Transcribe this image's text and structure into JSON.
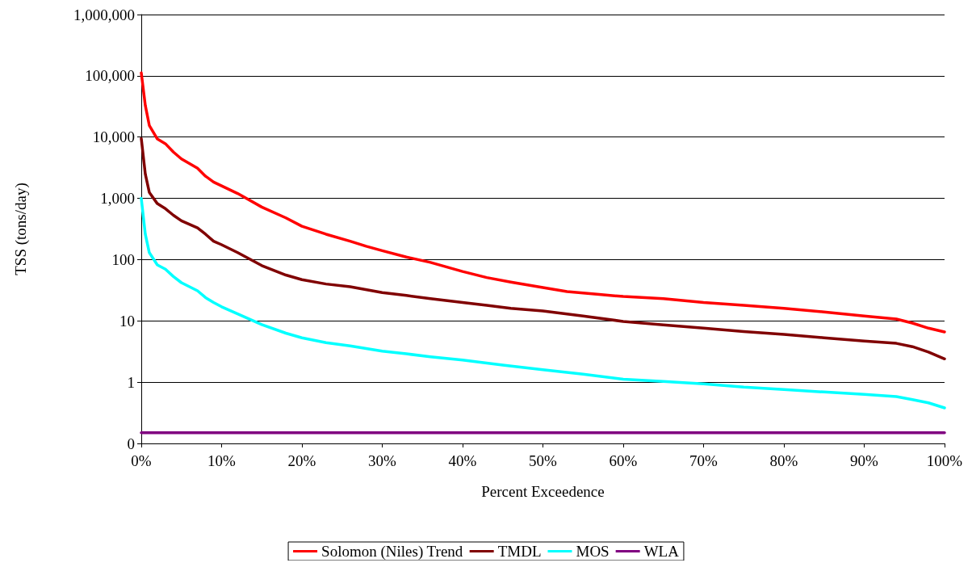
{
  "chart_data": {
    "type": "line",
    "xlabel": "Percent Exceedence",
    "ylabel": "TSS (tons/day)",
    "log": "y",
    "grid": "y",
    "legend": "bottom",
    "marker": "none",
    "line_style": "solid",
    "xlim": [
      0,
      100
    ],
    "xticks": [
      {
        "value": 0,
        "label": "0%"
      },
      {
        "value": 10,
        "label": "10%"
      },
      {
        "value": 20,
        "label": "20%"
      },
      {
        "value": 30,
        "label": "30%"
      },
      {
        "value": 40,
        "label": "40%"
      },
      {
        "value": 50,
        "label": "50%"
      },
      {
        "value": 60,
        "label": "60%"
      },
      {
        "value": 70,
        "label": "70%"
      },
      {
        "value": 80,
        "label": "80%"
      },
      {
        "value": 90,
        "label": "90%"
      },
      {
        "value": 100,
        "label": "100%"
      }
    ],
    "ylim": [
      0.1,
      1000000
    ],
    "yticks": [
      {
        "value": 0.1,
        "label": "0"
      },
      1,
      10,
      100,
      {
        "value": 1000,
        "label": "1,000"
      },
      {
        "value": 10000,
        "label": "10,000"
      },
      {
        "value": 100000,
        "label": "100,000"
      },
      {
        "value": 1000000,
        "label": "1,000,000"
      }
    ],
    "series": [
      {
        "name": "Solomon (Niles) Trend",
        "color": "#ff0000",
        "x": [
          0,
          0.5,
          1,
          2,
          3,
          4,
          5,
          7,
          8,
          9,
          10,
          12,
          15,
          18,
          20,
          23,
          26,
          28,
          30,
          33,
          36,
          40,
          43,
          46,
          50,
          53,
          57,
          60,
          65,
          70,
          75,
          80,
          85,
          90,
          94,
          96,
          98,
          100
        ],
        "values": [
          112000,
          33000,
          15500,
          9300,
          7800,
          5700,
          4400,
          3100,
          2300,
          1850,
          1600,
          1200,
          720,
          480,
          350,
          260,
          200,
          165,
          140,
          110,
          90,
          64,
          51,
          43,
          35,
          30,
          27,
          25,
          23,
          20,
          18,
          16,
          14,
          12,
          10.7,
          9.2,
          7.6,
          6.6
        ]
      },
      {
        "name": "TMDL",
        "color": "#800000",
        "x": [
          0,
          0.5,
          1,
          2,
          3,
          4,
          5,
          7,
          8,
          9,
          10,
          12,
          15,
          18,
          20,
          23,
          26,
          30,
          33,
          36,
          40,
          43,
          46,
          50,
          55,
          60,
          65,
          70,
          75,
          80,
          85,
          90,
          94,
          96,
          98,
          100
        ],
        "values": [
          9500,
          2500,
          1250,
          820,
          680,
          530,
          430,
          330,
          260,
          200,
          175,
          130,
          80,
          56,
          47,
          40,
          36,
          29,
          26,
          23,
          20,
          18,
          16,
          14.5,
          12,
          9.8,
          8.6,
          7.6,
          6.7,
          6.0,
          5.3,
          4.7,
          4.3,
          3.8,
          3.1,
          2.4
        ]
      },
      {
        "name": "MOS",
        "color": "#00ffff",
        "x": [
          0,
          0.5,
          1,
          2,
          3,
          4,
          5,
          7,
          8,
          9,
          10,
          12,
          15,
          18,
          20,
          23,
          26,
          30,
          33,
          36,
          40,
          45,
          50,
          55,
          60,
          65,
          70,
          75,
          80,
          85,
          90,
          94,
          96,
          98,
          100
        ],
        "values": [
          1000,
          260,
          130,
          82,
          70,
          53,
          42,
          31,
          24,
          20,
          17,
          13,
          8.7,
          6.3,
          5.3,
          4.4,
          3.9,
          3.2,
          2.9,
          2.6,
          2.3,
          1.9,
          1.6,
          1.35,
          1.12,
          1.03,
          0.94,
          0.83,
          0.76,
          0.69,
          0.63,
          0.58,
          0.52,
          0.46,
          0.38
        ]
      },
      {
        "name": "WLA",
        "color": "#800080",
        "x": [
          0,
          100
        ],
        "values": [
          0.15,
          0.15
        ]
      }
    ]
  }
}
